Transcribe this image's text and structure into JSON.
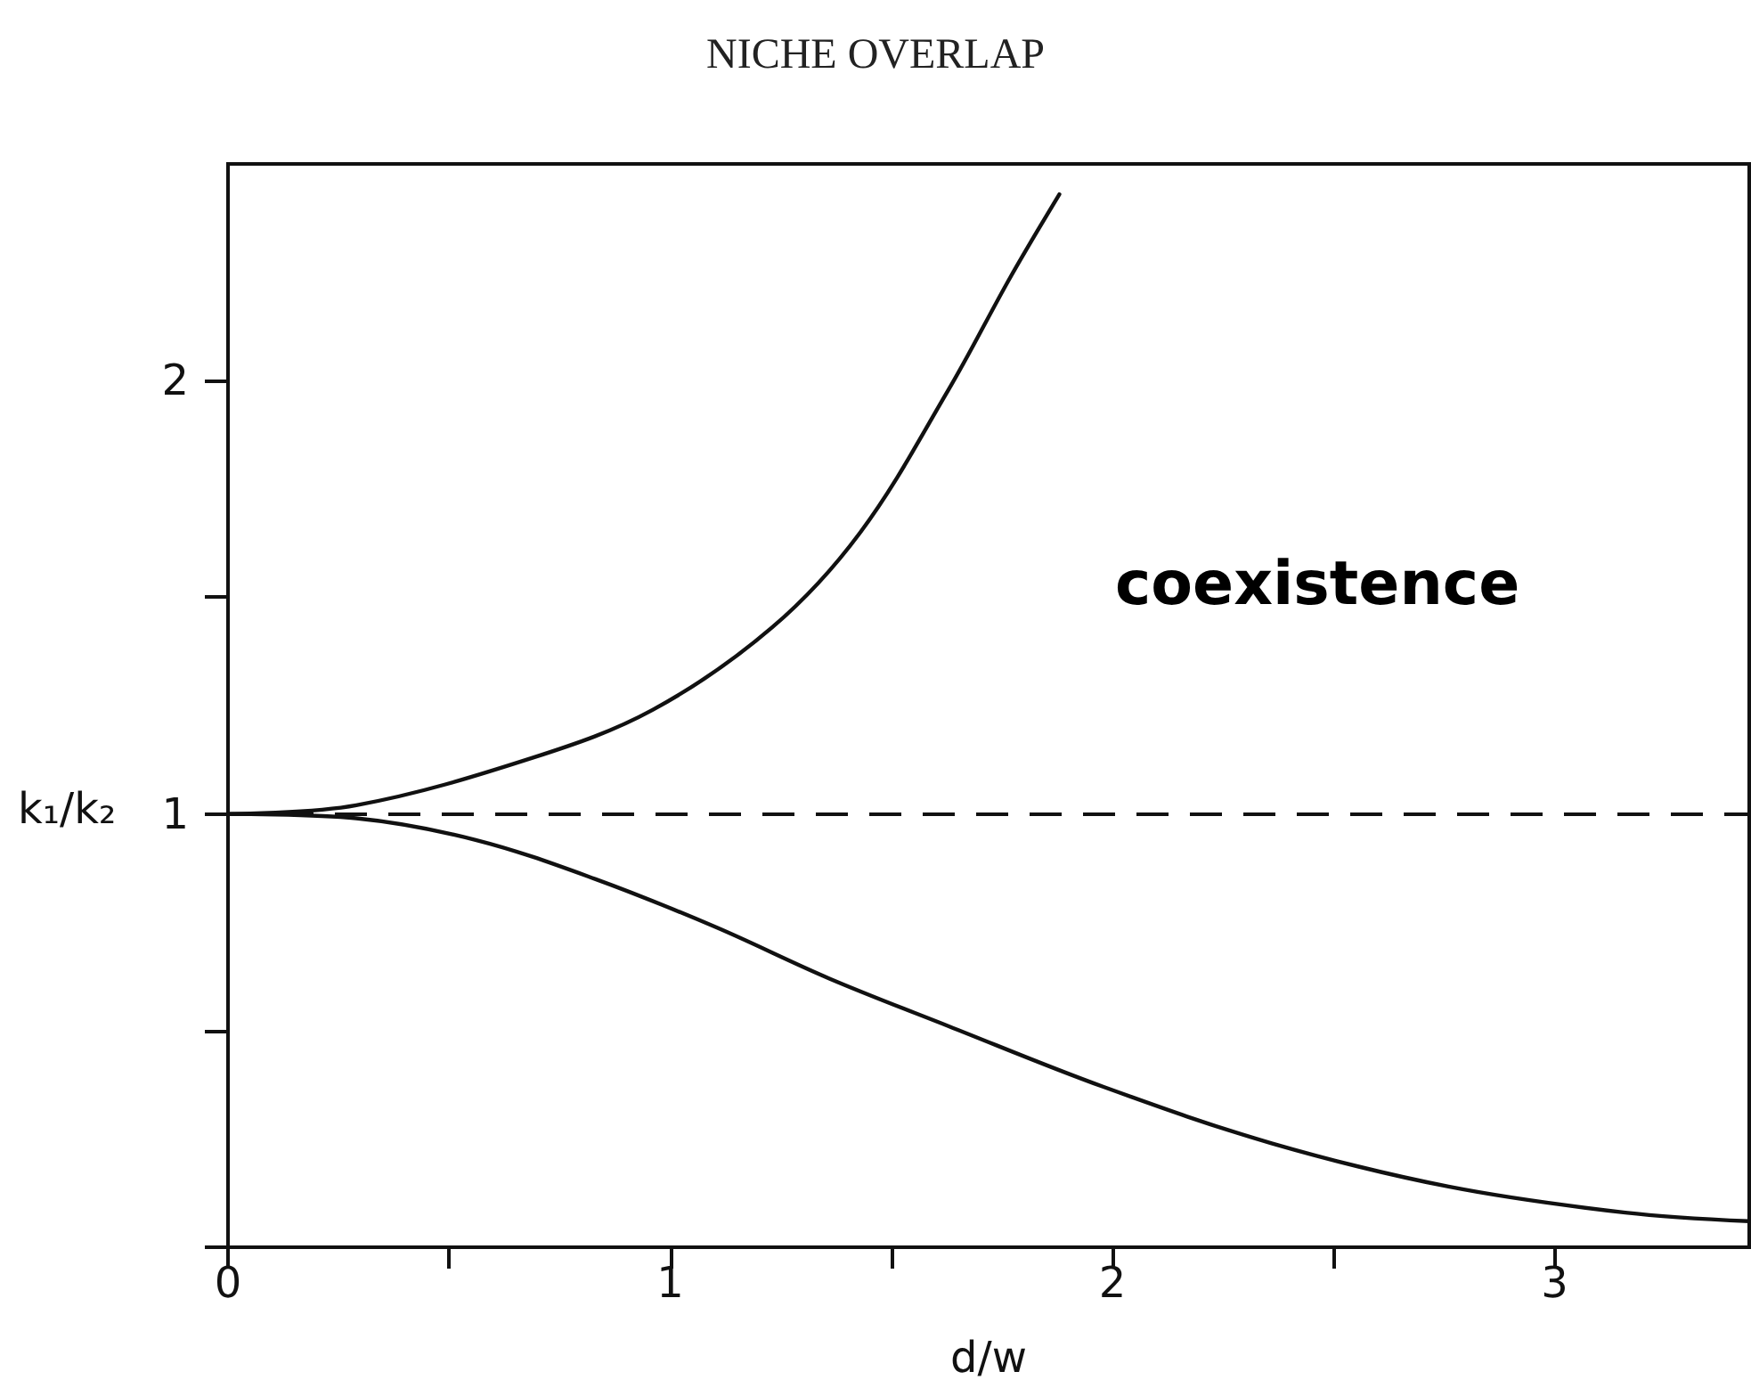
{
  "chart_data": {
    "type": "line",
    "title": "NICHE OVERLAP",
    "xlabel": "d/w",
    "ylabel": "k₁/k₂",
    "xlim": [
      0,
      3.44
    ],
    "ylim": [
      0,
      2.5
    ],
    "xticks": [
      0,
      {
        "value": 0.5,
        "label": null
      },
      1,
      {
        "value": 1.5,
        "label": null
      },
      2,
      {
        "value": 2.5,
        "label": null
      },
      3
    ],
    "yticks": [
      {
        "value": 0,
        "label": null
      },
      {
        "value": 0.5,
        "label": null
      },
      1,
      {
        "value": 1.5,
        "label": null
      },
      2
    ],
    "series": [
      {
        "color": "#111111",
        "x": [
          0,
          0.29,
          0.69,
          0.96,
          1.23,
          1.43,
          1.63,
          1.77,
          1.88
        ],
        "values": [
          1,
          1.02,
          1.13,
          1.24,
          1.43,
          1.65,
          1.98,
          2.24,
          2.43
        ]
      },
      {
        "color": "#111111",
        "x": [
          0,
          0.29,
          0.56,
          0.83,
          1.1,
          1.36,
          1.63,
          1.98,
          2.36,
          2.76,
          3.16,
          3.44
        ],
        "values": [
          1,
          0.99,
          0.94,
          0.85,
          0.74,
          0.62,
          0.51,
          0.37,
          0.24,
          0.14,
          0.08,
          0.06
        ]
      }
    ],
    "ref_lines": [
      {
        "axis": "y",
        "value": 1,
        "color": "#111111",
        "line_style": "dashed"
      }
    ],
    "annotations": [
      "coexistence"
    ],
    "marker": "none",
    "line_style": "solid"
  }
}
